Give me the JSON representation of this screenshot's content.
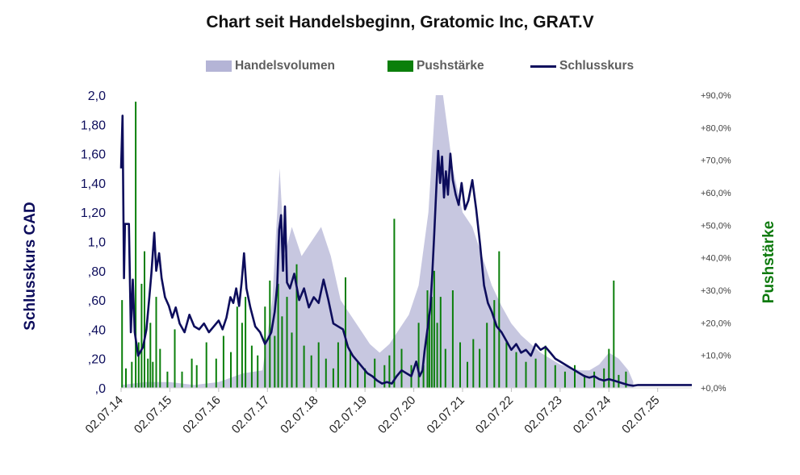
{
  "chart_data": {
    "type": "line",
    "title": "Chart seit Handelsbeginn, Gratomic Inc, GRAT.V",
    "ylabel": "Schlusskurs CAD",
    "y2label": "Pushstärke",
    "ylim": [
      0,
      2.0
    ],
    "y2lim": [
      0,
      90
    ],
    "y_ticks": [
      "2,0",
      "1,80",
      "1,60",
      "1,40",
      "1,20",
      "1,0",
      ",80",
      ",60",
      ",40",
      ",20",
      ",0"
    ],
    "y2_ticks": [
      "+90,0%",
      "+80,0%",
      "+70,0%",
      "+60,0%",
      "+50,0%",
      "+40,0%",
      "+30,0%",
      "+20,0%",
      "+10,0%",
      "+0,0%"
    ],
    "x_ticks": [
      "02.07.14",
      "02.07.15",
      "02.07.16",
      "02.07.17",
      "02.07.18",
      "02.07.19",
      "02.07.20",
      "02.07.21",
      "02.07.22",
      "02.07.23",
      "02.07.24",
      "02.07.25"
    ],
    "xlim": [
      2014.5,
      2026.2
    ],
    "legend": [
      {
        "name": "Handelsvolumen",
        "color": "#b4b4d6",
        "kind": "area"
      },
      {
        "name": "Pushstärke",
        "color": "#0b7f0b",
        "kind": "bar"
      },
      {
        "name": "Schlusskurs",
        "color": "#0d0d5c",
        "kind": "line"
      }
    ],
    "legend_position": "top",
    "series": [
      {
        "name": "Schlusskurs",
        "color": "#0d0d5c",
        "points": [
          [
            2014.5,
            1.5
          ],
          [
            2014.53,
            1.86
          ],
          [
            2014.56,
            0.75
          ],
          [
            2014.58,
            1.12
          ],
          [
            2014.66,
            1.12
          ],
          [
            2014.7,
            0.38
          ],
          [
            2014.74,
            0.74
          ],
          [
            2014.78,
            0.38
          ],
          [
            2014.85,
            0.22
          ],
          [
            2014.95,
            0.28
          ],
          [
            2015.02,
            0.4
          ],
          [
            2015.08,
            0.62
          ],
          [
            2015.12,
            0.78
          ],
          [
            2015.18,
            1.06
          ],
          [
            2015.22,
            0.8
          ],
          [
            2015.28,
            0.92
          ],
          [
            2015.33,
            0.75
          ],
          [
            2015.4,
            0.62
          ],
          [
            2015.48,
            0.56
          ],
          [
            2015.55,
            0.48
          ],
          [
            2015.62,
            0.55
          ],
          [
            2015.7,
            0.44
          ],
          [
            2015.8,
            0.38
          ],
          [
            2015.9,
            0.5
          ],
          [
            2016.0,
            0.42
          ],
          [
            2016.1,
            0.4
          ],
          [
            2016.2,
            0.44
          ],
          [
            2016.3,
            0.38
          ],
          [
            2016.4,
            0.42
          ],
          [
            2016.5,
            0.46
          ],
          [
            2016.58,
            0.4
          ],
          [
            2016.66,
            0.48
          ],
          [
            2016.74,
            0.62
          ],
          [
            2016.8,
            0.58
          ],
          [
            2016.86,
            0.68
          ],
          [
            2016.92,
            0.56
          ],
          [
            2016.97,
            0.72
          ],
          [
            2017.02,
            0.92
          ],
          [
            2017.07,
            0.68
          ],
          [
            2017.15,
            0.55
          ],
          [
            2017.25,
            0.42
          ],
          [
            2017.35,
            0.38
          ],
          [
            2017.45,
            0.3
          ],
          [
            2017.52,
            0.34
          ],
          [
            2017.58,
            0.38
          ],
          [
            2017.65,
            0.52
          ],
          [
            2017.7,
            0.7
          ],
          [
            2017.74,
            1.08
          ],
          [
            2017.78,
            1.18
          ],
          [
            2017.82,
            0.8
          ],
          [
            2017.86,
            1.24
          ],
          [
            2017.9,
            0.72
          ],
          [
            2017.96,
            0.68
          ],
          [
            2018.05,
            0.78
          ],
          [
            2018.15,
            0.6
          ],
          [
            2018.25,
            0.68
          ],
          [
            2018.35,
            0.55
          ],
          [
            2018.45,
            0.62
          ],
          [
            2018.55,
            0.58
          ],
          [
            2018.65,
            0.74
          ],
          [
            2018.75,
            0.6
          ],
          [
            2018.85,
            0.44
          ],
          [
            2018.95,
            0.42
          ],
          [
            2019.05,
            0.4
          ],
          [
            2019.15,
            0.28
          ],
          [
            2019.25,
            0.22
          ],
          [
            2019.35,
            0.18
          ],
          [
            2019.45,
            0.14
          ],
          [
            2019.55,
            0.1
          ],
          [
            2019.65,
            0.08
          ],
          [
            2019.75,
            0.05
          ],
          [
            2019.85,
            0.03
          ],
          [
            2019.95,
            0.04
          ],
          [
            2020.05,
            0.03
          ],
          [
            2020.15,
            0.08
          ],
          [
            2020.25,
            0.12
          ],
          [
            2020.35,
            0.1
          ],
          [
            2020.45,
            0.08
          ],
          [
            2020.55,
            0.18
          ],
          [
            2020.62,
            0.08
          ],
          [
            2020.68,
            0.12
          ],
          [
            2020.72,
            0.25
          ],
          [
            2020.78,
            0.4
          ],
          [
            2020.84,
            0.55
          ],
          [
            2020.88,
            0.78
          ],
          [
            2020.92,
            1.05
          ],
          [
            2020.96,
            1.35
          ],
          [
            2021.0,
            1.62
          ],
          [
            2021.04,
            1.4
          ],
          [
            2021.08,
            1.58
          ],
          [
            2021.12,
            1.3
          ],
          [
            2021.16,
            1.48
          ],
          [
            2021.2,
            1.32
          ],
          [
            2021.25,
            1.6
          ],
          [
            2021.3,
            1.42
          ],
          [
            2021.36,
            1.32
          ],
          [
            2021.42,
            1.25
          ],
          [
            2021.48,
            1.4
          ],
          [
            2021.55,
            1.22
          ],
          [
            2021.62,
            1.28
          ],
          [
            2021.7,
            1.42
          ],
          [
            2021.78,
            1.22
          ],
          [
            2021.86,
            0.98
          ],
          [
            2021.94,
            0.7
          ],
          [
            2022.02,
            0.58
          ],
          [
            2022.1,
            0.52
          ],
          [
            2022.2,
            0.42
          ],
          [
            2022.3,
            0.38
          ],
          [
            2022.4,
            0.32
          ],
          [
            2022.5,
            0.26
          ],
          [
            2022.6,
            0.3
          ],
          [
            2022.7,
            0.24
          ],
          [
            2022.8,
            0.26
          ],
          [
            2022.9,
            0.22
          ],
          [
            2023.0,
            0.3
          ],
          [
            2023.1,
            0.26
          ],
          [
            2023.2,
            0.28
          ],
          [
            2023.3,
            0.24
          ],
          [
            2023.4,
            0.2
          ],
          [
            2023.5,
            0.18
          ],
          [
            2023.6,
            0.16
          ],
          [
            2023.7,
            0.14
          ],
          [
            2023.8,
            0.12
          ],
          [
            2023.9,
            0.1
          ],
          [
            2024.0,
            0.08
          ],
          [
            2024.1,
            0.07
          ],
          [
            2024.2,
            0.08
          ],
          [
            2024.3,
            0.06
          ],
          [
            2024.4,
            0.05
          ],
          [
            2024.5,
            0.06
          ],
          [
            2024.6,
            0.05
          ],
          [
            2024.7,
            0.04
          ],
          [
            2024.8,
            0.03
          ],
          [
            2024.9,
            0.02
          ],
          [
            2025.0,
            0.015
          ],
          [
            2025.1,
            0.02
          ],
          [
            2025.3,
            0.02
          ],
          [
            2025.6,
            0.02
          ],
          [
            2026.0,
            0.02
          ],
          [
            2026.2,
            0.02
          ]
        ]
      },
      {
        "name": "Handelsvolumen",
        "color": "#b4b4d6",
        "note_scale": "relative 0-1",
        "points": [
          [
            2014.5,
            0.01
          ],
          [
            2015.0,
            0.02
          ],
          [
            2015.5,
            0.02
          ],
          [
            2016.0,
            0.01
          ],
          [
            2016.5,
            0.02
          ],
          [
            2017.0,
            0.05
          ],
          [
            2017.4,
            0.06
          ],
          [
            2017.6,
            0.3
          ],
          [
            2017.75,
            0.75
          ],
          [
            2017.85,
            0.45
          ],
          [
            2018.0,
            0.55
          ],
          [
            2018.2,
            0.45
          ],
          [
            2018.4,
            0.5
          ],
          [
            2018.6,
            0.55
          ],
          [
            2018.8,
            0.45
          ],
          [
            2019.0,
            0.3
          ],
          [
            2019.2,
            0.25
          ],
          [
            2019.4,
            0.2
          ],
          [
            2019.6,
            0.15
          ],
          [
            2019.8,
            0.12
          ],
          [
            2020.0,
            0.15
          ],
          [
            2020.2,
            0.2
          ],
          [
            2020.4,
            0.25
          ],
          [
            2020.6,
            0.35
          ],
          [
            2020.8,
            0.6
          ],
          [
            2020.95,
            1.0
          ],
          [
            2021.1,
            1.0
          ],
          [
            2021.3,
            0.75
          ],
          [
            2021.5,
            0.6
          ],
          [
            2021.7,
            0.55
          ],
          [
            2021.9,
            0.45
          ],
          [
            2022.1,
            0.35
          ],
          [
            2022.3,
            0.28
          ],
          [
            2022.5,
            0.22
          ],
          [
            2022.7,
            0.18
          ],
          [
            2022.9,
            0.15
          ],
          [
            2023.1,
            0.12
          ],
          [
            2023.3,
            0.1
          ],
          [
            2023.5,
            0.08
          ],
          [
            2023.7,
            0.07
          ],
          [
            2023.9,
            0.06
          ],
          [
            2024.1,
            0.06
          ],
          [
            2024.3,
            0.08
          ],
          [
            2024.5,
            0.12
          ],
          [
            2024.7,
            0.1
          ],
          [
            2024.9,
            0.06
          ],
          [
            2025.0,
            0.02
          ]
        ]
      },
      {
        "name": "Pushstärke",
        "color": "#0b7f0b",
        "points": [
          [
            2014.52,
            27
          ],
          [
            2014.6,
            6
          ],
          [
            2014.72,
            8
          ],
          [
            2014.8,
            88
          ],
          [
            2014.86,
            14
          ],
          [
            2014.92,
            32
          ],
          [
            2014.98,
            42
          ],
          [
            2015.05,
            9
          ],
          [
            2015.1,
            20
          ],
          [
            2015.15,
            8
          ],
          [
            2015.22,
            28
          ],
          [
            2015.3,
            12
          ],
          [
            2015.45,
            5
          ],
          [
            2015.6,
            18
          ],
          [
            2015.75,
            5
          ],
          [
            2015.95,
            9
          ],
          [
            2016.05,
            7
          ],
          [
            2016.25,
            14
          ],
          [
            2016.45,
            9
          ],
          [
            2016.6,
            16
          ],
          [
            2016.75,
            11
          ],
          [
            2016.88,
            25
          ],
          [
            2016.98,
            20
          ],
          [
            2017.05,
            28
          ],
          [
            2017.18,
            13
          ],
          [
            2017.3,
            10
          ],
          [
            2017.45,
            25
          ],
          [
            2017.55,
            33
          ],
          [
            2017.65,
            16
          ],
          [
            2017.72,
            32
          ],
          [
            2017.8,
            22
          ],
          [
            2017.9,
            28
          ],
          [
            2018.0,
            17
          ],
          [
            2018.1,
            38
          ],
          [
            2018.25,
            13
          ],
          [
            2018.4,
            10
          ],
          [
            2018.55,
            14
          ],
          [
            2018.7,
            9
          ],
          [
            2018.85,
            6
          ],
          [
            2018.95,
            14
          ],
          [
            2019.1,
            34
          ],
          [
            2019.2,
            11
          ],
          [
            2019.35,
            8
          ],
          [
            2019.5,
            6
          ],
          [
            2019.7,
            9
          ],
          [
            2019.9,
            7
          ],
          [
            2020.0,
            10
          ],
          [
            2020.1,
            52
          ],
          [
            2020.25,
            12
          ],
          [
            2020.45,
            7
          ],
          [
            2020.6,
            20
          ],
          [
            2020.7,
            7
          ],
          [
            2020.78,
            30
          ],
          [
            2020.82,
            22
          ],
          [
            2020.87,
            28
          ],
          [
            2020.92,
            36
          ],
          [
            2020.98,
            20
          ],
          [
            2021.05,
            28
          ],
          [
            2021.15,
            12
          ],
          [
            2021.3,
            30
          ],
          [
            2021.45,
            14
          ],
          [
            2021.6,
            8
          ],
          [
            2021.72,
            15
          ],
          [
            2021.85,
            12
          ],
          [
            2022.0,
            20
          ],
          [
            2022.15,
            27
          ],
          [
            2022.25,
            42
          ],
          [
            2022.4,
            14
          ],
          [
            2022.6,
            11
          ],
          [
            2022.8,
            8
          ],
          [
            2023.0,
            9
          ],
          [
            2023.2,
            13
          ],
          [
            2023.4,
            7
          ],
          [
            2023.6,
            5
          ],
          [
            2023.8,
            7
          ],
          [
            2024.0,
            4
          ],
          [
            2024.2,
            5
          ],
          [
            2024.4,
            6
          ],
          [
            2024.5,
            12
          ],
          [
            2024.6,
            33
          ],
          [
            2024.7,
            4
          ],
          [
            2024.85,
            5
          ]
        ]
      }
    ]
  }
}
